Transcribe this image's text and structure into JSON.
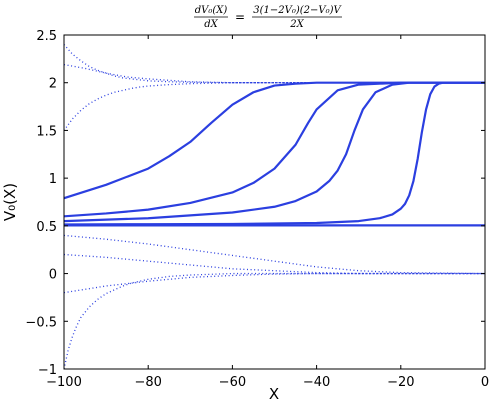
{
  "chart_data": {
    "type": "line",
    "title": {
      "lhs_numerator": "dV₀(X)",
      "lhs_denominator": "dX",
      "equals": "=",
      "rhs_numerator": "3(1−2V₀)(2−V₀)V",
      "rhs_denominator": "2X"
    },
    "xlabel": "X",
    "ylabel": "V₀(X)",
    "xlim": [
      -100,
      0
    ],
    "ylim": [
      -1,
      2.5
    ],
    "xticks": [
      -100,
      -80,
      -60,
      -40,
      -20,
      0
    ],
    "xtick_labels": [
      "−100",
      "−80",
      "−60",
      "−40",
      "−20",
      "0"
    ],
    "yticks": [
      -1,
      -0.5,
      0,
      0.5,
      1,
      1.5,
      2,
      2.5
    ],
    "ytick_labels": [
      "−1",
      "−0.5",
      "0",
      "0.5",
      "1",
      "1.5",
      "2",
      "2.5"
    ],
    "grid": false,
    "line_color": "#2b3fe0",
    "solid_series": [
      {
        "x": [
          -100,
          -90,
          -80,
          -75,
          -70,
          -65,
          -60,
          -55,
          -50,
          -45,
          -40,
          -30,
          -20,
          0
        ],
        "y": [
          0.79,
          0.93,
          1.1,
          1.23,
          1.38,
          1.58,
          1.77,
          1.9,
          1.97,
          1.99,
          2.0,
          2.0,
          2.0,
          2.0
        ]
      },
      {
        "x": [
          -100,
          -90,
          -80,
          -70,
          -60,
          -55,
          -50,
          -45,
          -42,
          -40,
          -35,
          -30,
          -20,
          0
        ],
        "y": [
          0.6,
          0.63,
          0.67,
          0.74,
          0.85,
          0.95,
          1.1,
          1.35,
          1.58,
          1.72,
          1.92,
          1.98,
          2.0,
          2.0
        ]
      },
      {
        "x": [
          -100,
          -80,
          -60,
          -50,
          -45,
          -40,
          -37,
          -35,
          -33,
          -31,
          -29,
          -26,
          -22,
          -18,
          0
        ],
        "y": [
          0.55,
          0.58,
          0.64,
          0.7,
          0.76,
          0.86,
          0.97,
          1.08,
          1.25,
          1.5,
          1.72,
          1.9,
          1.98,
          2.0,
          2.0
        ]
      },
      {
        "x": [
          -100,
          -80,
          -60,
          -40,
          -30,
          -25,
          -22,
          -20,
          -19,
          -18,
          -17,
          -16,
          -15,
          -14,
          -13,
          -12,
          -11,
          -10,
          0
        ],
        "y": [
          0.515,
          0.517,
          0.52,
          0.53,
          0.55,
          0.58,
          0.62,
          0.68,
          0.73,
          0.82,
          0.97,
          1.2,
          1.48,
          1.72,
          1.88,
          1.96,
          1.99,
          2.0,
          2.0
        ]
      },
      {
        "x": [
          -100,
          0
        ],
        "y": [
          0.505,
          0.505
        ]
      }
    ],
    "dotted_series": [
      {
        "x": [
          -100,
          -98,
          -96,
          -94,
          -92,
          -90,
          -88,
          -86,
          -84,
          -82,
          -80,
          -75,
          -70,
          -60,
          -50,
          -40,
          0
        ],
        "y": [
          2.4,
          2.3,
          2.23,
          2.17,
          2.13,
          2.1,
          2.07,
          2.05,
          2.04,
          2.03,
          2.02,
          2.01,
          2.005,
          2.0,
          2.0,
          2.0,
          2.0
        ]
      },
      {
        "x": [
          -100,
          -95,
          -90,
          -85,
          -80,
          -70,
          -60,
          0
        ],
        "y": [
          2.19,
          2.15,
          2.1,
          2.06,
          2.04,
          2.01,
          2.0,
          2.0
        ]
      },
      {
        "x": [
          -100,
          -98,
          -96,
          -94,
          -92,
          -90,
          -88,
          -86,
          -84,
          -82,
          -80,
          -75,
          -70,
          -65,
          -60,
          -50,
          -40,
          0
        ],
        "y": [
          1.5,
          1.62,
          1.71,
          1.78,
          1.83,
          1.87,
          1.9,
          1.92,
          1.94,
          1.955,
          1.965,
          1.98,
          1.99,
          1.995,
          2.0,
          2.0,
          2.0,
          2.0
        ]
      },
      {
        "x": [
          -100,
          0
        ],
        "y": [
          0.5,
          0.5
        ]
      },
      {
        "x": [
          -100,
          -90,
          -80,
          -70,
          -60,
          -50,
          -40,
          -30,
          -20,
          0
        ],
        "y": [
          0.4,
          0.36,
          0.31,
          0.25,
          0.19,
          0.13,
          0.07,
          0.03,
          0.01,
          0.0
        ]
      },
      {
        "x": [
          -100,
          -90,
          -80,
          -70,
          -60,
          -50,
          -40,
          -30,
          -20,
          0
        ],
        "y": [
          0.2,
          0.17,
          0.13,
          0.09,
          0.05,
          0.03,
          0.01,
          0.0,
          0.0,
          0.0
        ]
      },
      {
        "x": [
          -100,
          -90,
          -80,
          -70,
          -60,
          -50,
          -40,
          0
        ],
        "y": [
          -0.2,
          -0.13,
          -0.08,
          -0.04,
          -0.02,
          -0.005,
          0.0,
          0.0
        ]
      },
      {
        "x": [
          -100,
          -99,
          -98,
          -97,
          -96,
          -94,
          -92,
          -90,
          -88,
          -86,
          -84,
          -82,
          -80,
          -75,
          -70,
          -60,
          -50,
          0
        ],
        "y": [
          -1.0,
          -0.8,
          -0.66,
          -0.55,
          -0.46,
          -0.35,
          -0.27,
          -0.21,
          -0.17,
          -0.13,
          -0.1,
          -0.08,
          -0.06,
          -0.03,
          -0.015,
          0.0,
          0.0,
          0.0
        ]
      }
    ]
  }
}
